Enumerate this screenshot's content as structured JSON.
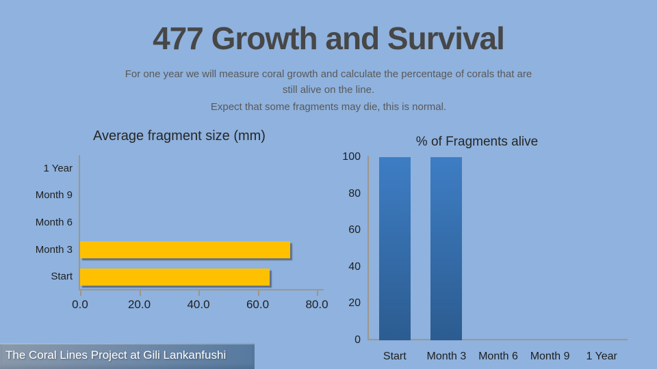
{
  "slide": {
    "title": "477 Growth and Survival",
    "subtitle_lines": [
      "For one year we will measure coral growth and calculate the percentage of corals that are",
      "still alive on the line.",
      "Expect that some fragments may die, this is normal."
    ],
    "footer": {
      "text": "The Coral Lines Project at Gili Lankanfushi"
    }
  },
  "colors": {
    "background": "#8FB2DE",
    "title_text": "#474747",
    "subtitle_text": "#595959",
    "chart_text": "#262626",
    "axis_line": "#9E9689",
    "orange_bar": "#FFC000",
    "blue_bar_top": "#3E7DC4",
    "blue_bar_bottom": "#2C5C90",
    "footer_band_left": "#8A99AB",
    "footer_band_right": "#56799F",
    "footer_text": "#FFFFFF"
  },
  "chart_data": [
    {
      "type": "bar",
      "orientation": "horizontal",
      "title": "Average fragment size (mm)",
      "categories": [
        "1 Year",
        "Month 9",
        "Month 6",
        "Month 3",
        "Start"
      ],
      "values": [
        0,
        0,
        0,
        71,
        64
      ],
      "xlabel": "",
      "ylabel": "",
      "xlim": [
        0,
        80
      ],
      "x_ticks": [
        "0.0",
        "20.0",
        "40.0",
        "60.0",
        "80.0"
      ],
      "bar_color": "#FFC000",
      "grid": "off",
      "legend": "none"
    },
    {
      "type": "bar",
      "orientation": "vertical",
      "title": "% of Fragments alive",
      "categories": [
        "Start",
        "Month 3",
        "Month 6",
        "Month 9",
        "1 Year"
      ],
      "values": [
        100,
        100,
        0,
        0,
        0
      ],
      "xlabel": "",
      "ylabel": "",
      "ylim": [
        0,
        100
      ],
      "y_ticks": [
        "0",
        "20",
        "40",
        "60",
        "80",
        "100"
      ],
      "bar_gradient": [
        "#3E7DC4",
        "#2C5C90"
      ],
      "grid": "off",
      "legend": "none"
    }
  ]
}
